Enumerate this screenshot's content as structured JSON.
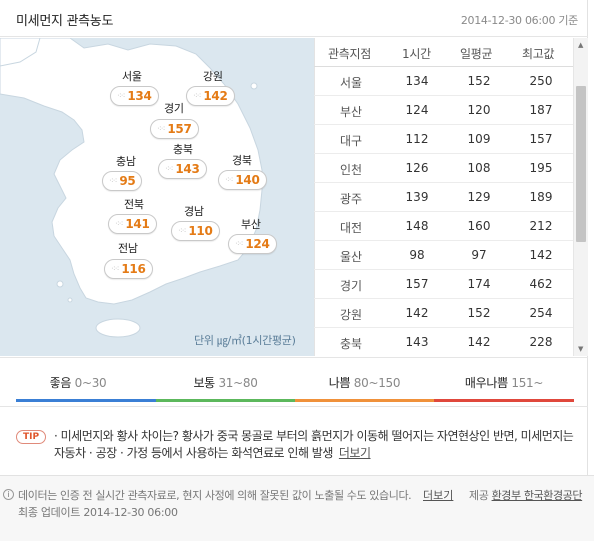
{
  "header": {
    "title": "미세먼지 관측농도",
    "timestamp": "2014-12-30 06:00 기준"
  },
  "map": {
    "unit_label": "단위 ㎍/㎥(1시간평균)",
    "regions": [
      {
        "name": "서울",
        "value": "134"
      },
      {
        "name": "강원",
        "value": "142"
      },
      {
        "name": "경기",
        "value": "157"
      },
      {
        "name": "충북",
        "value": "143"
      },
      {
        "name": "충남",
        "value": "95"
      },
      {
        "name": "경북",
        "value": "140"
      },
      {
        "name": "전북",
        "value": "141"
      },
      {
        "name": "경남",
        "value": "110"
      },
      {
        "name": "부산",
        "value": "124"
      },
      {
        "name": "전남",
        "value": "116"
      }
    ],
    "colors": {
      "sea": "#dbe7ef",
      "land": "#ffffff",
      "value": "#e47b16"
    }
  },
  "table": {
    "headers": [
      "관측지점",
      "1시간",
      "일평균",
      "최고값"
    ],
    "rows": [
      [
        "서울",
        "134",
        "152",
        "250"
      ],
      [
        "부산",
        "124",
        "120",
        "187"
      ],
      [
        "대구",
        "112",
        "109",
        "157"
      ],
      [
        "인천",
        "126",
        "108",
        "195"
      ],
      [
        "광주",
        "139",
        "129",
        "189"
      ],
      [
        "대전",
        "148",
        "160",
        "212"
      ],
      [
        "울산",
        "98",
        "97",
        "142"
      ],
      [
        "경기",
        "157",
        "174",
        "462"
      ],
      [
        "강원",
        "142",
        "152",
        "254"
      ],
      [
        "충북",
        "143",
        "142",
        "228"
      ]
    ]
  },
  "legend": [
    {
      "label": "좋음",
      "range": "0~30",
      "color": "#3a7fd5"
    },
    {
      "label": "보통",
      "range": "31~80",
      "color": "#5cb85c"
    },
    {
      "label": "나쁨",
      "range": "80~150",
      "color": "#f0913a"
    },
    {
      "label": "매우나쁨",
      "range": "151~",
      "color": "#e0483c"
    }
  ],
  "tip": {
    "badge": "TIP",
    "text": "· 미세먼지와 황사 차이는? 황사가 중국 몽골로 부터의 흙먼지가 이동해 떨어지는 자연현상인 반면, 미세먼지는 자동차 · 공장 · 가정 등에서 사용하는 화석연료로 인해 발생",
    "link": "더보기"
  },
  "footer": {
    "notice": "데이터는 인증 전 실시간 관측자료로, 현지 사정에 의해 잘못된 값이 노출될 수도 있습니다.",
    "more_link": "더보기",
    "provider_label": "제공",
    "provider_name": "환경부 한국환경공단",
    "updated": "최종 업데이트 2014-12-30 06:00"
  }
}
